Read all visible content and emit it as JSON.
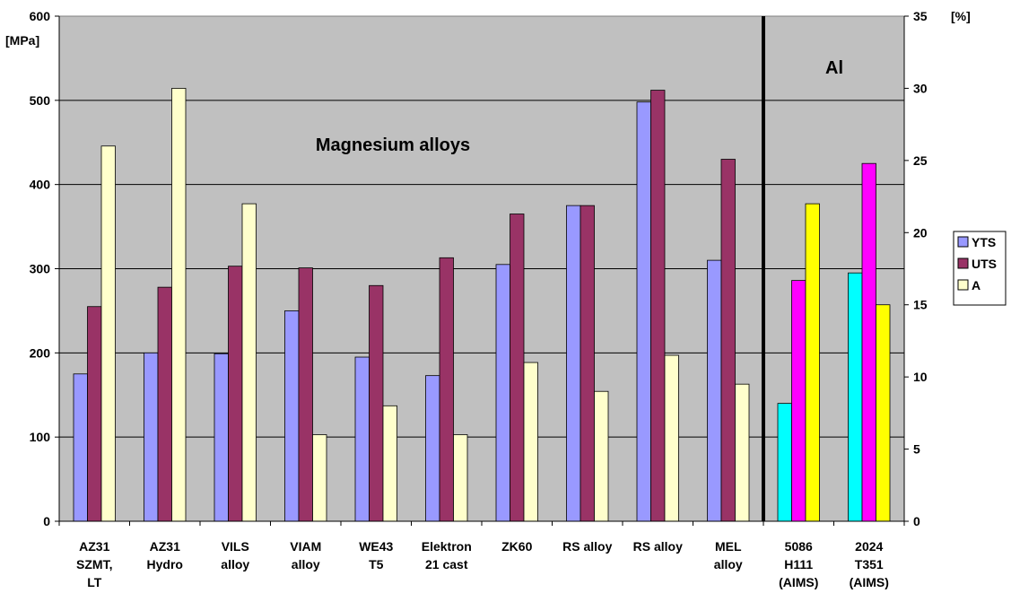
{
  "chart_data": {
    "type": "bar",
    "categories": [
      [
        "AZ31",
        "SZMT,",
        "LT"
      ],
      [
        "AZ31",
        "Hydro"
      ],
      [
        "VILS",
        "alloy"
      ],
      [
        "VIAM",
        "alloy"
      ],
      [
        "WE43",
        "T5"
      ],
      [
        "Elektron",
        "21 cast"
      ],
      [
        "ZK60"
      ],
      [
        "RS alloy"
      ],
      [
        "RS alloy"
      ],
      [
        "MEL",
        "alloy"
      ],
      [
        "5086",
        "H111",
        "(AIMS)"
      ],
      [
        "2024",
        "T351",
        "(AIMS)"
      ]
    ],
    "series": [
      {
        "name": "YTS",
        "axis": "left",
        "values": [
          175,
          200,
          199,
          250,
          195,
          173,
          305,
          375,
          498,
          310,
          140,
          295
        ]
      },
      {
        "name": "UTS",
        "axis": "left",
        "values": [
          255,
          278,
          303,
          301,
          280,
          313,
          365,
          375,
          512,
          430,
          286,
          425
        ]
      },
      {
        "name": "A",
        "axis": "right",
        "values": [
          26,
          30,
          22,
          6,
          8,
          6,
          11,
          9,
          11.5,
          9.5,
          22,
          15
        ]
      }
    ],
    "y_left": {
      "label": "[MPa]",
      "lim": [
        0,
        600
      ],
      "ticks": [
        0,
        100,
        200,
        300,
        400,
        500,
        600
      ]
    },
    "y_right": {
      "label": "[%]",
      "lim": [
        0,
        35
      ],
      "ticks": [
        0,
        5,
        10,
        15,
        20,
        25,
        30,
        35
      ]
    },
    "annotations": [
      "Magnesium alloys",
      "Al"
    ],
    "divider_after_index": 9,
    "grid": true,
    "legend_position": "right",
    "colors": {
      "plot_bg": "#c0c0c0",
      "mg": {
        "YTS": "#9999ff",
        "UTS": "#993366",
        "A": "#ffffcc"
      },
      "al": {
        "YTS": "#00ffff",
        "UTS": "#ff00ff",
        "A": "#ffff00"
      }
    }
  }
}
